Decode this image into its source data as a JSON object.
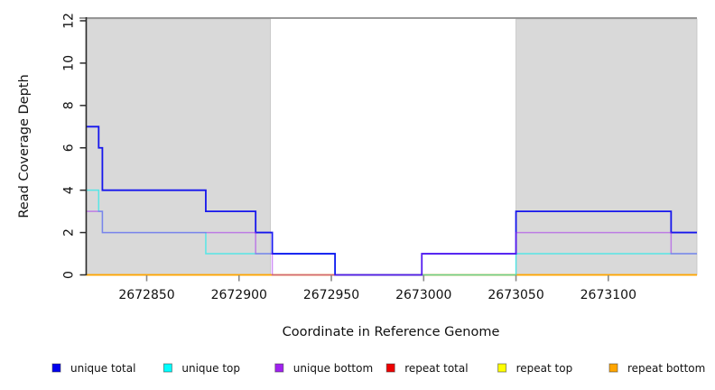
{
  "chart_data": {
    "type": "line",
    "subtype": "step-coverage",
    "title": "",
    "xlabel": "Coordinate in Reference Genome",
    "ylabel": "Read Coverage Depth",
    "xlim": [
      2672817,
      2673148
    ],
    "ylim": [
      0,
      12
    ],
    "x_ticks": [
      2672850,
      2672900,
      2672950,
      2673000,
      2673050,
      2673100
    ],
    "y_ticks": [
      0,
      2,
      4,
      6,
      8,
      10,
      12
    ],
    "grid": "off",
    "legend_position": "bottom",
    "repeat_region_fill": "#D9D9D9",
    "repeat_regions": [
      [
        2672817,
        2672917
      ],
      [
        2673050,
        2673148
      ]
    ],
    "series": [
      {
        "name": "unique total",
        "color": "#0000EE",
        "steps": [
          [
            2672817,
            7
          ],
          [
            2672824,
            6
          ],
          [
            2672826,
            4
          ],
          [
            2672882,
            3
          ],
          [
            2672909,
            2
          ],
          [
            2672918,
            1
          ],
          [
            2672952,
            0
          ],
          [
            2672999,
            1
          ],
          [
            2673050,
            3
          ],
          [
            2673134,
            2
          ]
        ]
      },
      {
        "name": "unique top",
        "color": "#00EEEE",
        "steps": [
          [
            2672817,
            4
          ],
          [
            2672824,
            3
          ],
          [
            2672826,
            2
          ],
          [
            2672882,
            1
          ],
          [
            2672952,
            0
          ],
          [
            2673050,
            1
          ]
        ]
      },
      {
        "name": "unique bottom",
        "color": "#A020F0",
        "steps": [
          [
            2672817,
            3
          ],
          [
            2672826,
            2
          ],
          [
            2672909,
            1
          ],
          [
            2672918,
            0
          ],
          [
            2672999,
            1
          ],
          [
            2673050,
            2
          ],
          [
            2673134,
            1
          ]
        ]
      },
      {
        "name": "repeat total",
        "color": "#EE0000",
        "steps": [
          [
            2672817,
            0
          ]
        ]
      },
      {
        "name": "repeat top",
        "color": "#FFFF00",
        "steps": [
          [
            2672817,
            0
          ]
        ]
      },
      {
        "name": "repeat bottom",
        "color": "#FFA500",
        "steps": [
          [
            2672817,
            0
          ]
        ]
      }
    ],
    "legend": [
      {
        "label": "unique total",
        "color": "#0000EE"
      },
      {
        "label": "unique top",
        "color": "#00FFFF"
      },
      {
        "label": "unique bottom",
        "color": "#A020F0"
      },
      {
        "label": "repeat total",
        "color": "#EE0000"
      },
      {
        "label": "repeat top",
        "color": "#FFFF00"
      },
      {
        "label": "repeat bottom",
        "color": "#FFA500"
      }
    ]
  }
}
